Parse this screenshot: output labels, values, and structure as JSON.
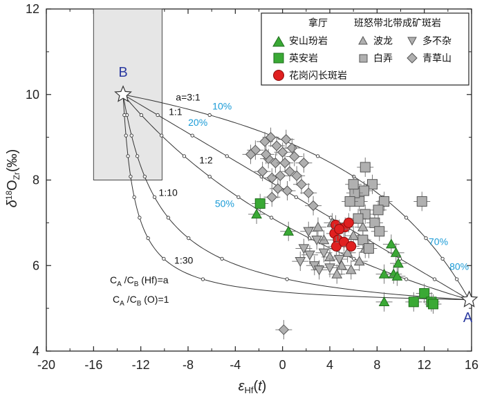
{
  "chart_data": {
    "type": "scatter",
    "xlabel": "εHf(t)",
    "ylabel": "δ18OZr(‰)",
    "xlim": [
      -20,
      16
    ],
    "ylim": [
      4,
      12
    ],
    "x_ticks": [
      -20,
      -16,
      -12,
      -8,
      -4,
      0,
      4,
      8,
      12,
      16
    ],
    "y_ticks": [
      4,
      6,
      8,
      10,
      12
    ],
    "x_tick_labels": [
      "-20",
      "-16",
      "-12",
      "-8",
      "-4",
      "0",
      "4",
      "8",
      "12",
      "16"
    ],
    "y_tick_labels": [
      "4",
      "6",
      "8",
      "10",
      "12"
    ],
    "shaded_region": {
      "x": [
        -16,
        -10.2
      ],
      "y": [
        8,
        12
      ]
    },
    "endpoints": [
      {
        "label": "B",
        "x": -13.5,
        "y": 10.0
      },
      {
        "label": "A",
        "x": 15.8,
        "y": 5.2
      }
    ],
    "mixing_curves": [
      {
        "label": "a=3:1",
        "a": 3
      },
      {
        "label": "1:1",
        "a": 1
      },
      {
        "label": "1:2",
        "a": 0.5
      },
      {
        "label": "1:10",
        "a": 0.1
      },
      {
        "label": "1:30",
        "a": 0.0333
      }
    ],
    "percent_labels": [
      "10%",
      "20%",
      "50%",
      "70%",
      "80%"
    ],
    "annotations": [
      "C",
      "A",
      "/C",
      "B",
      " (Hf)=a",
      " (O)=1"
    ],
    "legend": {
      "group1_title": "拿厅",
      "group2_title": "班怒带北带成矿斑岩",
      "entries": [
        {
          "label": "安山玢岩",
          "marker": "triangle-up",
          "color": "#3aa935"
        },
        {
          "label": "英安岩",
          "marker": "square",
          "color": "#3aa935"
        },
        {
          "label": "花岗闪长斑岩",
          "marker": "circle",
          "color": "#e02020"
        },
        {
          "label": "波龙",
          "marker": "triangle-up",
          "color": "#b0b0b0"
        },
        {
          "label": "多不杂",
          "marker": "triangle-down",
          "color": "#b0b0b0"
        },
        {
          "label": "白弄",
          "marker": "square",
          "color": "#b0b0b0"
        },
        {
          "label": "青草山",
          "marker": "diamond",
          "color": "#b0b0b0"
        }
      ]
    },
    "series": [
      {
        "name": "安山玢岩",
        "marker": "triangle-up",
        "color": "#3aa935",
        "points": [
          [
            -2.2,
            7.2
          ],
          [
            0.5,
            6.8
          ],
          [
            8.6,
            5.8
          ],
          [
            9.2,
            6.5
          ],
          [
            9.6,
            6.3
          ],
          [
            9.4,
            5.8
          ],
          [
            9.8,
            6.05
          ],
          [
            9.7,
            5.75
          ],
          [
            8.6,
            5.15
          ]
        ]
      },
      {
        "name": "英安岩",
        "marker": "square",
        "color": "#3aa935",
        "points": [
          [
            -1.9,
            7.45
          ],
          [
            11.1,
            5.15
          ],
          [
            12.0,
            5.35
          ],
          [
            12.6,
            5.15
          ],
          [
            12.75,
            5.1
          ]
        ]
      },
      {
        "name": "花岗闪长斑岩",
        "marker": "circle",
        "color": "#e02020",
        "points": [
          [
            4.5,
            6.95
          ],
          [
            4.4,
            6.75
          ],
          [
            4.7,
            6.6
          ],
          [
            4.55,
            6.45
          ],
          [
            5.3,
            6.9
          ],
          [
            5.6,
            7.0
          ],
          [
            5.2,
            6.55
          ],
          [
            5.8,
            6.45
          ],
          [
            4.8,
            6.85
          ]
        ]
      },
      {
        "name": "波龙",
        "marker": "triangle-up",
        "color": "#b0b0b0",
        "points": [
          [
            3.5,
            6.6
          ],
          [
            4.0,
            6.2
          ],
          [
            5.0,
            6.0
          ],
          [
            5.5,
            6.3
          ],
          [
            6.0,
            6.7
          ],
          [
            6.5,
            6.1
          ],
          [
            7.0,
            6.4
          ],
          [
            4.2,
            7.0
          ],
          [
            3.0,
            6.9
          ],
          [
            6.8,
            6.9
          ],
          [
            5.8,
            5.9
          ],
          [
            4.6,
            5.8
          ]
        ]
      },
      {
        "name": "多不杂",
        "marker": "triangle-down",
        "color": "#b0b0b0",
        "points": [
          [
            1.8,
            6.4
          ],
          [
            2.3,
            6.25
          ],
          [
            2.7,
            6.0
          ],
          [
            3.1,
            5.9
          ],
          [
            3.5,
            6.3
          ],
          [
            2.9,
            6.6
          ],
          [
            4.0,
            5.95
          ],
          [
            2.2,
            6.8
          ],
          [
            1.5,
            6.1
          ],
          [
            4.8,
            6.15
          ]
        ]
      },
      {
        "name": "白弄",
        "marker": "square",
        "color": "#b0b0b0",
        "points": [
          [
            7.0,
            8.3
          ],
          [
            11.8,
            7.5
          ],
          [
            8.6,
            7.5
          ],
          [
            7.6,
            7.9
          ],
          [
            6.9,
            7.75
          ],
          [
            6.5,
            7.5
          ],
          [
            6.1,
            7.7
          ],
          [
            7.0,
            7.2
          ],
          [
            7.8,
            7.0
          ],
          [
            8.2,
            6.8
          ],
          [
            6.8,
            6.6
          ],
          [
            6.4,
            7.1
          ],
          [
            5.7,
            7.5
          ],
          [
            7.3,
            6.4
          ],
          [
            8.1,
            7.3
          ],
          [
            6.0,
            7.9
          ]
        ]
      },
      {
        "name": "青草山",
        "marker": "diamond",
        "color": "#b0b0b0",
        "points": [
          [
            -2.3,
            8.7
          ],
          [
            -1.5,
            8.9
          ],
          [
            -1.0,
            9.0
          ],
          [
            -0.5,
            8.8
          ],
          [
            0.0,
            8.65
          ],
          [
            0.3,
            8.95
          ],
          [
            0.8,
            8.75
          ],
          [
            -1.2,
            8.5
          ],
          [
            -0.6,
            8.4
          ],
          [
            0.2,
            8.4
          ],
          [
            -1.7,
            8.2
          ],
          [
            -0.9,
            8.05
          ],
          [
            -0.2,
            8.1
          ],
          [
            0.6,
            8.2
          ],
          [
            1.2,
            8.1
          ],
          [
            -0.4,
            7.8
          ],
          [
            0.4,
            7.75
          ],
          [
            1.6,
            7.9
          ],
          [
            2.2,
            7.7
          ],
          [
            -0.9,
            7.6
          ],
          [
            0.1,
            4.5
          ],
          [
            1.0,
            8.55
          ],
          [
            -1.4,
            8.6
          ],
          [
            1.8,
            8.4
          ],
          [
            2.6,
            7.4
          ],
          [
            -2.7,
            8.6
          ]
        ]
      }
    ]
  }
}
